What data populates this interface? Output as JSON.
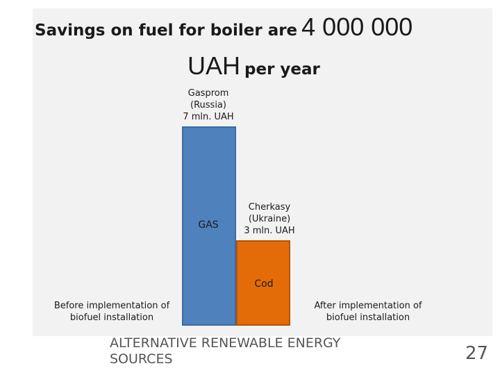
{
  "title": {
    "part1": "Savings on fuel for boiler are",
    "amount": "4 000 000",
    "currency": "UAH",
    "part2": "per year"
  },
  "chart_data": {
    "type": "bar",
    "categories": [
      "Before implementation of biofuel installation",
      "After implementation of biofuel installation"
    ],
    "values": [
      7,
      3
    ],
    "unit": "mln. UAH",
    "bar_labels": [
      "GAS",
      "Cod"
    ],
    "annotations": [
      {
        "lines": [
          "Gasprom",
          "(Russia)",
          "7 mln. UAH"
        ]
      },
      {
        "lines": [
          "Cherkasy",
          "(Ukraine)",
          "3 mln. UAH"
        ]
      }
    ],
    "category_lines": [
      [
        "Before implementation of",
        "biofuel installation"
      ],
      [
        "After implementation of",
        "biofuel installation"
      ]
    ],
    "colors": [
      "#4f81bd",
      "#e36c09"
    ],
    "grid": false
  },
  "footer": {
    "line1": "ALTERNATIVE RENEWABLE ENERGY",
    "line2": "SOURCES",
    "page_number": "27"
  }
}
